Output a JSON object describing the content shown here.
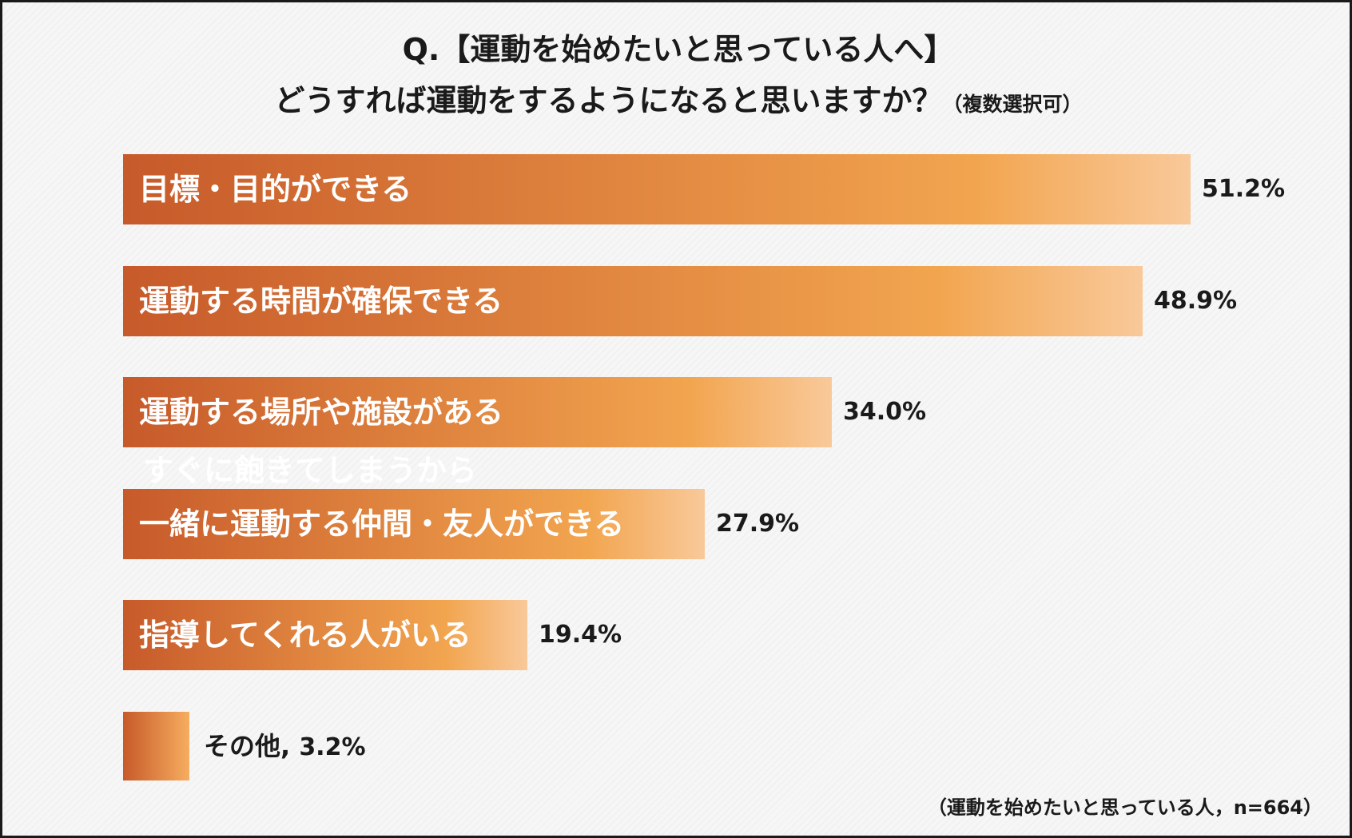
{
  "chart_data": {
    "type": "bar",
    "orientation": "horizontal",
    "title_line1": "Q.【運動を始めたいと思っている人へ】",
    "title_line2": "どうすれば運動をするようになると思いますか？",
    "title_note": "（複数選択可）",
    "categories": [
      "目標・目的ができる",
      "運動する時間が確保できる",
      "運動する場所や施設がある",
      "一緒に運動する仲間・友人ができる",
      "指導してくれる人がいる",
      "その他"
    ],
    "values": [
      51.2,
      48.9,
      34.0,
      27.9,
      19.4,
      3.2
    ],
    "value_labels": [
      "51.2%",
      "48.9%",
      "34.0%",
      "27.9%",
      "19.4%",
      "3.2%"
    ],
    "other_label_separator": ",",
    "faint_label": "すぐに飽きてしまうから",
    "footnote": "（運動を始めたいと思っている人，n=664）",
    "unit": "%",
    "grid": false,
    "legend": "none",
    "colors": {
      "gradient_start": "#c75a2a",
      "gradient_mid": "#f2a54f",
      "gradient_end": "#f9c99a"
    }
  }
}
